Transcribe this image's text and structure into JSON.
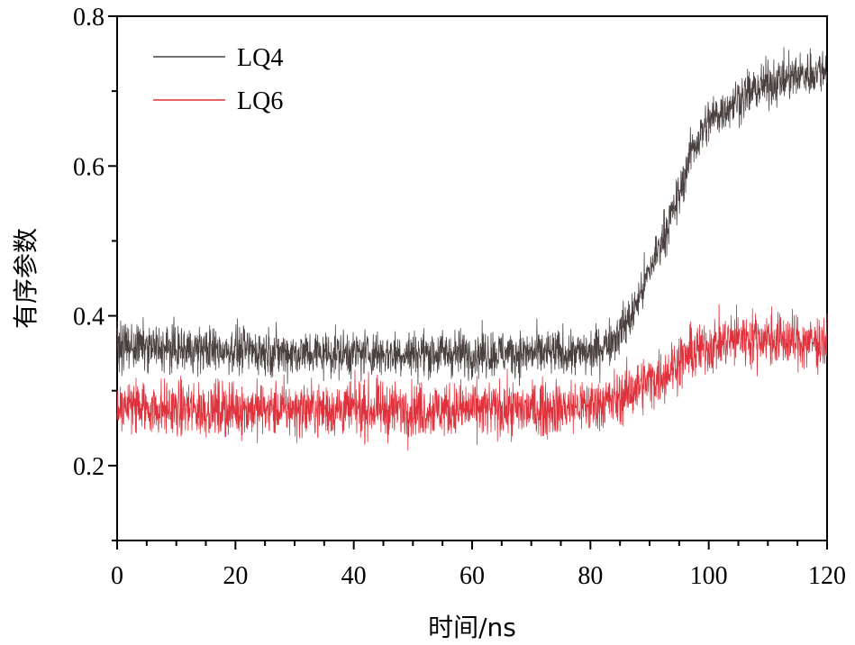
{
  "chart_data": {
    "type": "line",
    "title": "",
    "xlabel": "时间/ns",
    "ylabel": "有序参数",
    "xlim": [
      0,
      120
    ],
    "ylim": [
      0.1,
      0.8
    ],
    "xticks": [
      0,
      20,
      40,
      60,
      80,
      100,
      120
    ],
    "xtick_labels": [
      "0",
      "20",
      "40",
      "60",
      "80",
      "100",
      "120"
    ],
    "yticks": [
      0.2,
      0.4,
      0.6,
      0.8
    ],
    "ytick_labels": [
      "0.2",
      "0.4",
      "0.6",
      "0.8"
    ],
    "legend_position": "top-left",
    "series": [
      {
        "name": "LQ4",
        "color": "#4a4040",
        "noise_amplitude": 0.025,
        "trend": [
          [
            0,
            0.36
          ],
          [
            10,
            0.355
          ],
          [
            20,
            0.355
          ],
          [
            30,
            0.35
          ],
          [
            40,
            0.35
          ],
          [
            50,
            0.35
          ],
          [
            60,
            0.35
          ],
          [
            70,
            0.35
          ],
          [
            80,
            0.35
          ],
          [
            84,
            0.37
          ],
          [
            87,
            0.4
          ],
          [
            90,
            0.46
          ],
          [
            93,
            0.52
          ],
          [
            95,
            0.56
          ],
          [
            97,
            0.62
          ],
          [
            100,
            0.66
          ],
          [
            105,
            0.69
          ],
          [
            110,
            0.71
          ],
          [
            115,
            0.72
          ],
          [
            120,
            0.73
          ]
        ]
      },
      {
        "name": "LQ6",
        "color": "#e0323c",
        "noise_amplitude": 0.03,
        "trend": [
          [
            0,
            0.28
          ],
          [
            10,
            0.275
          ],
          [
            20,
            0.275
          ],
          [
            30,
            0.275
          ],
          [
            40,
            0.275
          ],
          [
            50,
            0.275
          ],
          [
            60,
            0.275
          ],
          [
            70,
            0.275
          ],
          [
            80,
            0.28
          ],
          [
            85,
            0.29
          ],
          [
            88,
            0.305
          ],
          [
            92,
            0.32
          ],
          [
            96,
            0.345
          ],
          [
            100,
            0.36
          ],
          [
            105,
            0.37
          ],
          [
            110,
            0.37
          ],
          [
            115,
            0.365
          ],
          [
            120,
            0.365
          ]
        ]
      }
    ]
  }
}
